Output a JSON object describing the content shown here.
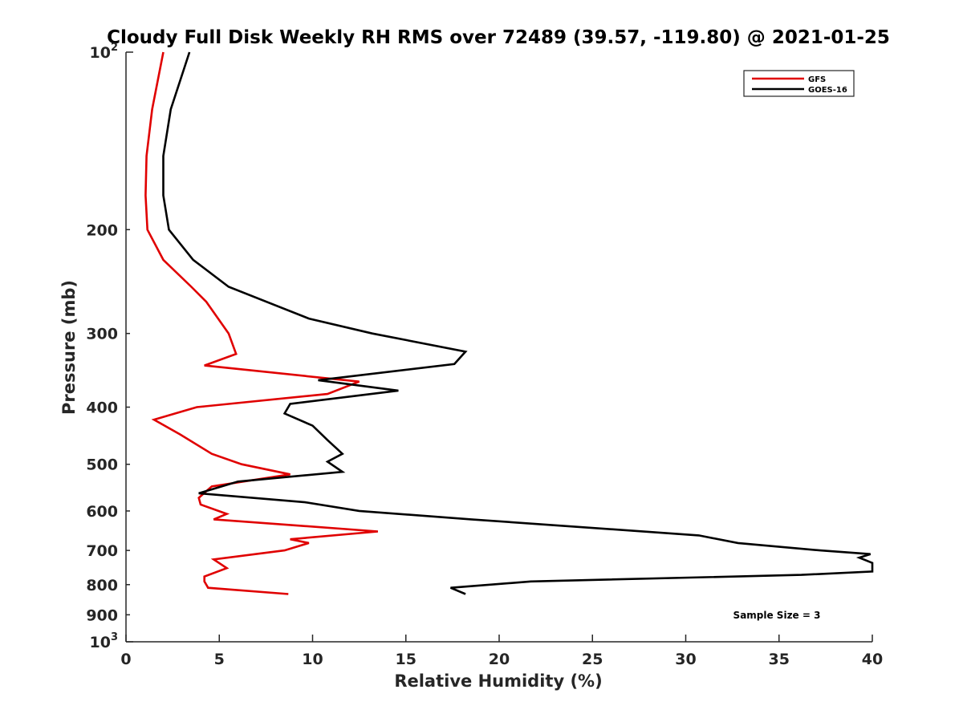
{
  "chart_data": {
    "type": "line",
    "title": "Cloudy Full Disk Weekly RH RMS over 72489 (39.57, -119.80) @ 2021-01-25",
    "xlabel": "Relative Humidity (%)",
    "ylabel": "Pressure (mb)",
    "xlim": [
      0,
      40
    ],
    "ylim": [
      100,
      1000
    ],
    "yscale": "log",
    "y_reversed": true,
    "x_ticks": [
      "0",
      "5",
      "10",
      "15",
      "20",
      "25",
      "30",
      "35",
      "40"
    ],
    "y_ticks": [
      {
        "value": 100,
        "base": "10",
        "exp": "2"
      },
      {
        "value": 200,
        "label": "200"
      },
      {
        "value": 300,
        "label": "300"
      },
      {
        "value": 400,
        "label": "400"
      },
      {
        "value": 500,
        "label": "500"
      },
      {
        "value": 600,
        "label": "600"
      },
      {
        "value": 700,
        "label": "700"
      },
      {
        "value": 800,
        "label": "800"
      },
      {
        "value": 900,
        "label": "900"
      },
      {
        "value": 1000,
        "base": "10",
        "exp": "3"
      }
    ],
    "legend_position": "top-right",
    "grid": false,
    "annotation": "Sample Size = 3",
    "series": [
      {
        "name": "GFS",
        "color": "#e00000",
        "points": [
          [
            2.0,
            100
          ],
          [
            1.4,
            125
          ],
          [
            1.1,
            150
          ],
          [
            1.05,
            175
          ],
          [
            1.15,
            200
          ],
          [
            2.0,
            225
          ],
          [
            3.5,
            250
          ],
          [
            4.3,
            265
          ],
          [
            5.5,
            300
          ],
          [
            5.9,
            325
          ],
          [
            4.2,
            340
          ],
          [
            12.5,
            362
          ],
          [
            10.8,
            380
          ],
          [
            3.8,
            400
          ],
          [
            1.5,
            420
          ],
          [
            2.9,
            445
          ],
          [
            4.6,
            480
          ],
          [
            6.2,
            500
          ],
          [
            8.8,
            520
          ],
          [
            4.6,
            545
          ],
          [
            3.9,
            570
          ],
          [
            4.0,
            585
          ],
          [
            5.4,
            607
          ],
          [
            4.7,
            620
          ],
          [
            13.5,
            650
          ],
          [
            8.8,
            670
          ],
          [
            9.8,
            680
          ],
          [
            8.5,
            700
          ],
          [
            4.7,
            725
          ],
          [
            5.4,
            750
          ],
          [
            4.2,
            775
          ],
          [
            4.2,
            790
          ],
          [
            4.4,
            810
          ],
          [
            8.7,
            830
          ]
        ]
      },
      {
        "name": "GOES-16",
        "color": "#000000",
        "points": [
          [
            3.4,
            100
          ],
          [
            2.4,
            125
          ],
          [
            2.0,
            150
          ],
          [
            2.0,
            175
          ],
          [
            2.3,
            200
          ],
          [
            3.6,
            225
          ],
          [
            5.5,
            250
          ],
          [
            9.8,
            283
          ],
          [
            13.2,
            300
          ],
          [
            18.2,
            322
          ],
          [
            17.6,
            338
          ],
          [
            10.3,
            360
          ],
          [
            14.6,
            375
          ],
          [
            8.8,
            395
          ],
          [
            8.5,
            410
          ],
          [
            10.0,
            430
          ],
          [
            10.8,
            455
          ],
          [
            11.6,
            480
          ],
          [
            10.8,
            495
          ],
          [
            11.6,
            515
          ],
          [
            6.0,
            535
          ],
          [
            3.9,
            560
          ],
          [
            9.6,
            580
          ],
          [
            12.5,
            600
          ],
          [
            18.5,
            620
          ],
          [
            30.7,
            660
          ],
          [
            32.8,
            680
          ],
          [
            37.2,
            700
          ],
          [
            39.9,
            710
          ],
          [
            39.3,
            720
          ],
          [
            40.0,
            735
          ],
          [
            40.0,
            760
          ],
          [
            36.2,
            770
          ],
          [
            21.7,
            790
          ],
          [
            17.4,
            810
          ],
          [
            18.2,
            830
          ]
        ]
      }
    ]
  }
}
